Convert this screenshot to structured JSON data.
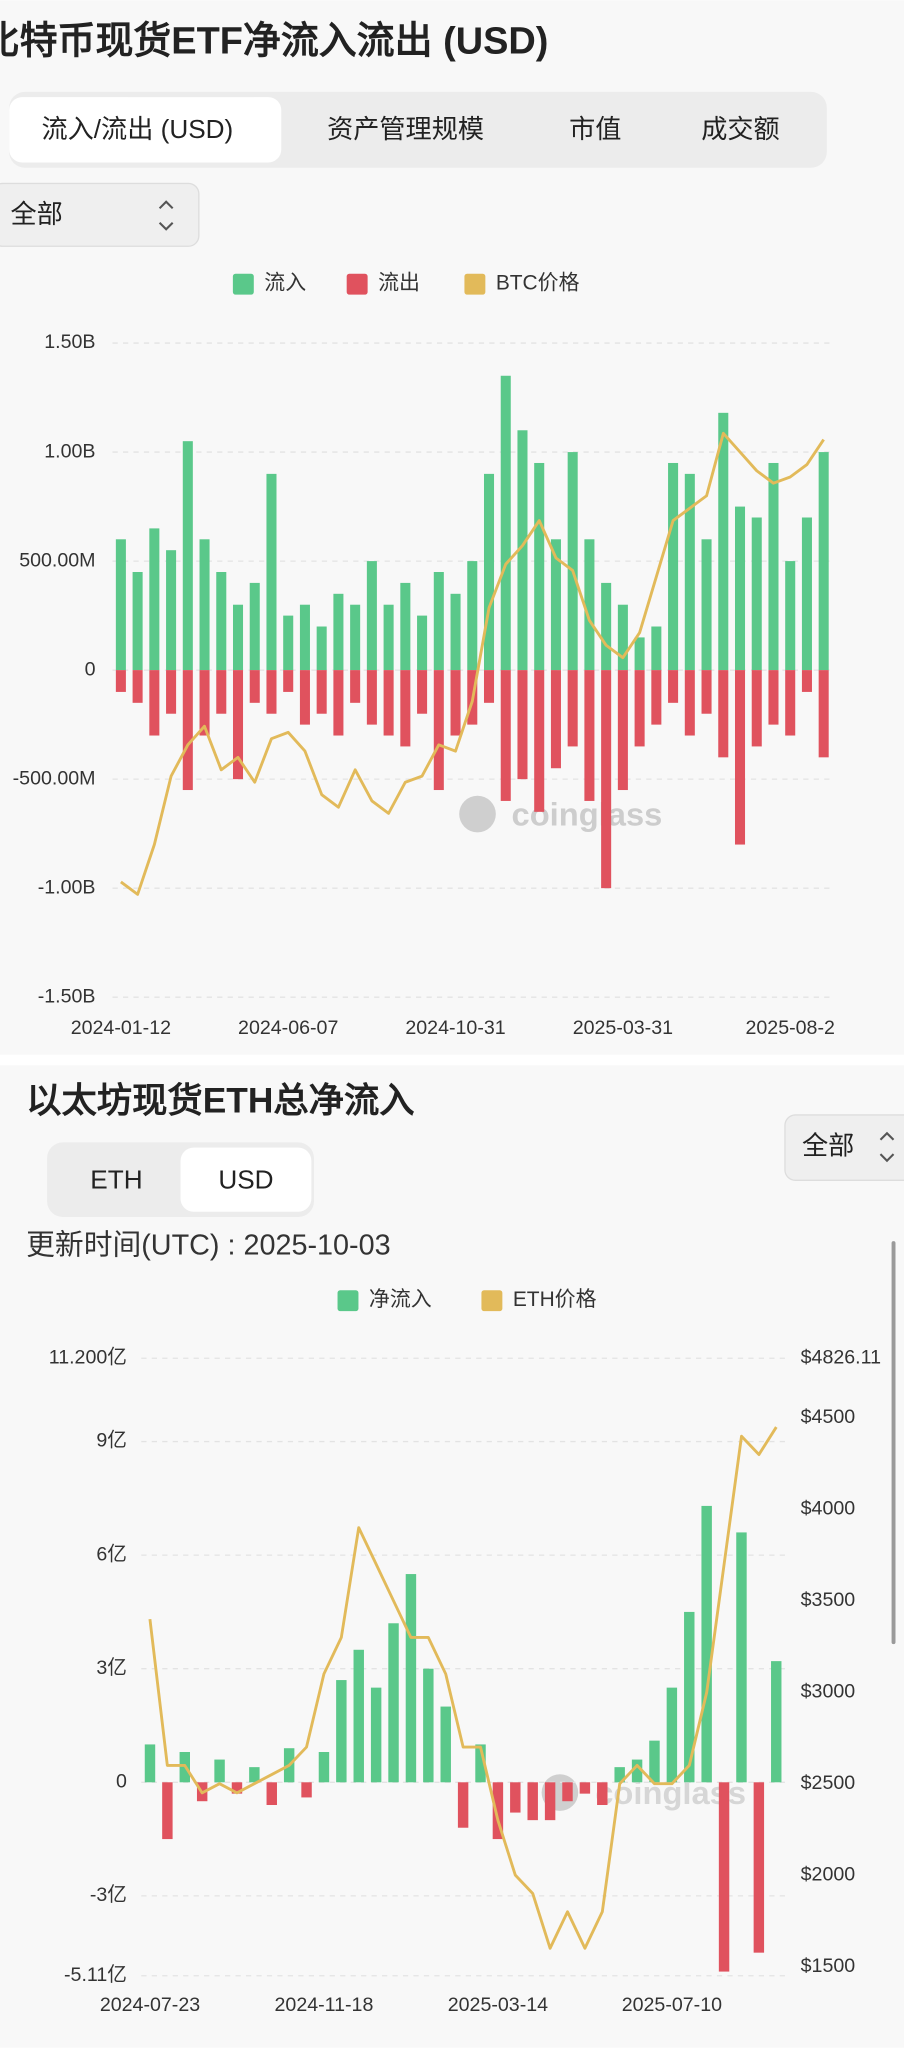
{
  "btc_section": {
    "tabs": [
      "流入/流出 (USD)",
      "资产管理规模",
      "市值",
      "成交额"
    ],
    "filter": "全部"
  },
  "eth_section": {
    "tabs": [
      "ETH",
      "USD"
    ],
    "filter": "全部"
  },
  "chart_data": [
    {
      "type": "bar",
      "title": "比特币现货ETF净流入流出 (USD)",
      "watermark": "coinglass",
      "categories": [
        "2024-01-12",
        null,
        null,
        null,
        null,
        null,
        null,
        null,
        null,
        null,
        "2024-06-07",
        null,
        null,
        null,
        null,
        null,
        null,
        null,
        null,
        null,
        "2024-10-31",
        null,
        null,
        null,
        null,
        null,
        null,
        null,
        null,
        null,
        "2025-03-31",
        null,
        null,
        null,
        null,
        null,
        null,
        null,
        null,
        null,
        "2025-08-2",
        null,
        null
      ],
      "series": [
        {
          "name": "流入",
          "color": "#5ac88a",
          "values": [
            600000000.0,
            450000000.0,
            650000000.0,
            550000000.0,
            1050000000.0,
            600000000.0,
            450000000.0,
            300000000.0,
            400000000.0,
            900000000.0,
            250000000.0,
            300000000.0,
            200000000.0,
            350000000.0,
            300000000.0,
            500000000.0,
            300000000.0,
            400000000.0,
            250000000.0,
            450000000.0,
            350000000.0,
            500000000.0,
            900000000.0,
            1350000000.0,
            1100000000.0,
            950000000.0,
            600000000.0,
            1000000000.0,
            600000000.0,
            400000000.0,
            300000000.0,
            150000000.0,
            200000000.0,
            950000000.0,
            900000000.0,
            600000000.0,
            1180000000.0,
            750000000.0,
            700000000.0,
            950000000.0,
            500000000.0,
            700000000.0,
            1000000000.0
          ]
        },
        {
          "name": "流出",
          "color": "#e0525e",
          "values": [
            -100000000.0,
            -150000000.0,
            -300000000.0,
            -200000000.0,
            -550000000.0,
            -300000000.0,
            -200000000.0,
            -500000000.0,
            -150000000.0,
            -200000000.0,
            -100000000.0,
            -250000000.0,
            -200000000.0,
            -300000000.0,
            -150000000.0,
            -250000000.0,
            -300000000.0,
            -350000000.0,
            -200000000.0,
            -550000000.0,
            -300000000.0,
            -250000000.0,
            -150000000.0,
            -600000000.0,
            -500000000.0,
            -650000000.0,
            -450000000.0,
            -350000000.0,
            -600000000.0,
            -1000000000.0,
            -550000000.0,
            -350000000.0,
            -250000000.0,
            -150000000.0,
            -300000000.0,
            -200000000.0,
            -400000000.0,
            -800000000.0,
            -350000000.0,
            -250000000.0,
            -300000000.0,
            -100000000.0,
            -400000000.0
          ]
        },
        {
          "name": "BTC价格",
          "color": "#e2ba5a",
          "type": "line",
          "axis": "y2",
          "values": [
            46000,
            44000,
            52000,
            63000,
            68000,
            71000,
            64000,
            66000,
            62000,
            69000,
            70000,
            67000,
            60000,
            58000,
            64000,
            59000,
            57000,
            62000,
            63000,
            68000,
            67000,
            75000,
            90000,
            97000,
            100000,
            104000,
            98000,
            96000,
            88000,
            84000,
            82000,
            86000,
            95000,
            104000,
            106000,
            108000,
            118000,
            115000,
            112000,
            110000,
            111000,
            113000,
            117000
          ]
        }
      ],
      "ylim": [
        -1500000000.0,
        1500000000.0
      ],
      "yticks": [
        {
          "value": 1500000000.0,
          "label": "1.50B"
        },
        {
          "value": 1000000000.0,
          "label": "1.00B"
        },
        {
          "value": 500000000.0,
          "label": "500.00M"
        },
        0,
        {
          "value": -500000000.0,
          "label": "-500.00M"
        },
        {
          "value": -1000000000.0,
          "label": "-1.00B"
        },
        {
          "value": -1500000000.0,
          "label": "-1.50B"
        }
      ],
      "y2lim": [
        27500,
        132500
      ],
      "grid": true,
      "legend": "top"
    },
    {
      "type": "bar",
      "title": "以太坊现货ETH总净流入",
      "subtitle": "更新时间(UTC) : 2025-10-03",
      "watermark": "coinglass",
      "categories": [
        "2024-07-23",
        null,
        null,
        null,
        null,
        null,
        null,
        null,
        null,
        null,
        "2024-11-18",
        null,
        null,
        null,
        null,
        null,
        null,
        null,
        null,
        null,
        "2025-03-14",
        null,
        null,
        null,
        null,
        null,
        null,
        null,
        null,
        null,
        "2025-07-10",
        null,
        null,
        null,
        null,
        null,
        null
      ],
      "series": [
        {
          "name": "净流入",
          "color": "#5ac88a",
          "negative_color": "#e0525e",
          "values": [
            1.0,
            -1.5,
            0.8,
            -0.5,
            0.6,
            -0.3,
            0.4,
            -0.6,
            0.9,
            -0.4,
            0.8,
            2.7,
            3.5,
            2.5,
            4.2,
            5.5,
            3.0,
            2.0,
            -1.2,
            1.0,
            -1.5,
            -0.8,
            -1.0,
            -1.0,
            -0.5,
            -0.3,
            -0.6,
            0.4,
            0.6,
            1.1,
            2.5,
            4.5,
            7.3,
            -5.0,
            6.6,
            -4.5,
            3.2
          ]
        },
        {
          "name": "ETH价格",
          "color": "#e2ba5a",
          "type": "line",
          "axis": "y2",
          "values": [
            3400,
            2600,
            2600,
            2450,
            2500,
            2450,
            2500,
            2550,
            2600,
            2700,
            3100,
            3300,
            3900,
            3700,
            3500,
            3300,
            3300,
            3100,
            2700,
            2700,
            2300,
            2000,
            1900,
            1600,
            1800,
            1600,
            1800,
            2500,
            2600,
            2500,
            2500,
            2600,
            3000,
            3700,
            4400,
            4300,
            4450
          ]
        }
      ],
      "ylim": [
        -5.11,
        11.2
      ],
      "yticks": [
        {
          "value": 11.2,
          "label": "11.200亿"
        },
        {
          "value": 9,
          "label": "9亿"
        },
        {
          "value": 6,
          "label": "6亿"
        },
        {
          "value": 3,
          "label": "3亿"
        },
        0,
        {
          "value": -3,
          "label": "-3亿"
        },
        {
          "value": -5.11,
          "label": "-5.11亿"
        }
      ],
      "y2lim": [
        1450,
        4826.11
      ],
      "y2ticks": [
        {
          "value": 4826.11,
          "label": "$4826.11"
        },
        {
          "value": 4500,
          "label": "$4500"
        },
        {
          "value": 4000,
          "label": "$4000"
        },
        {
          "value": 3500,
          "label": "$3500"
        },
        {
          "value": 3000,
          "label": "$3000"
        },
        {
          "value": 2500,
          "label": "$2500"
        },
        {
          "value": 2000,
          "label": "$2000"
        },
        {
          "value": 1500,
          "label": "$1500"
        }
      ],
      "grid": true,
      "legend": "top"
    }
  ]
}
